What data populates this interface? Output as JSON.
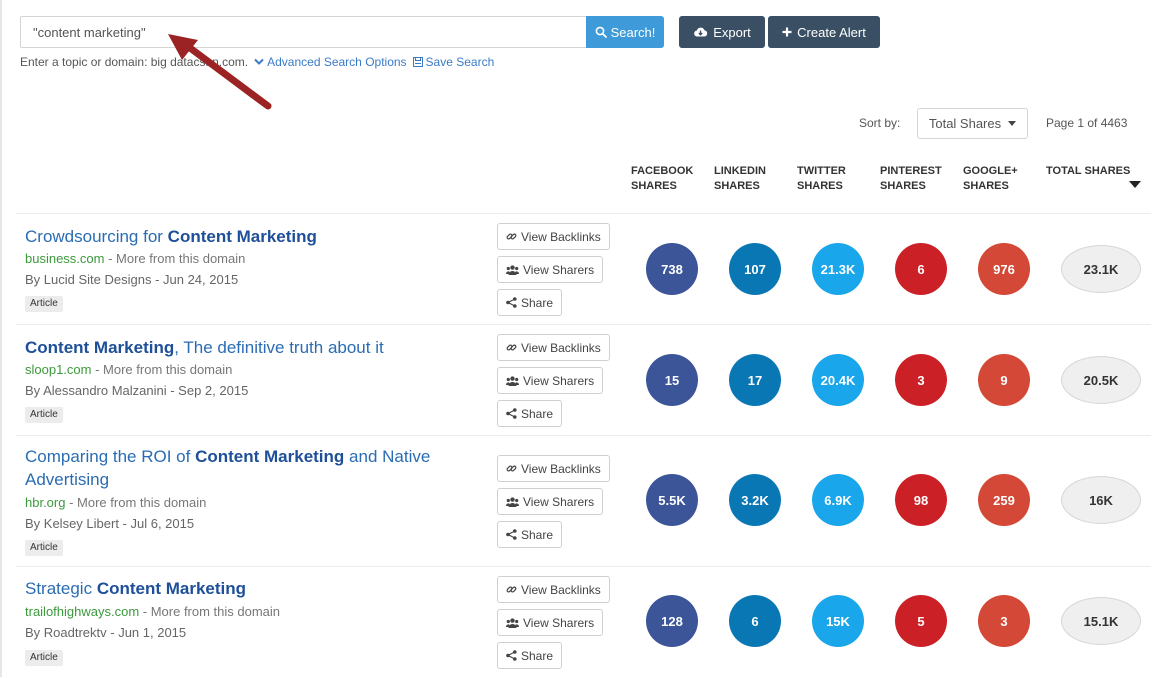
{
  "search": {
    "value": "\"content marketing\"",
    "button_label": "Search!",
    "helper_text": "Enter a topic or domain: big datacsnn.com.",
    "advanced_label": "Advanced Search Options",
    "save_label": "Save Search"
  },
  "toolbar": {
    "export_label": "Export",
    "create_alert_label": "Create Alert"
  },
  "sort": {
    "label": "Sort by:",
    "selected": "Total Shares",
    "page_info": "Page 1 of 4463"
  },
  "columns": [
    "FACEBOOK\nSHARES",
    "LINKEDIN\nSHARES",
    "TWITTER\nSHARES",
    "PINTEREST\nSHARES",
    "GOOGLE+\nSHARES",
    "TOTAL SHARES"
  ],
  "actions": {
    "backlinks": "View Backlinks",
    "sharers": "View Sharers",
    "share": "Share"
  },
  "colors": {
    "facebook": "#3b5598",
    "linkedin": "#0a77b5",
    "twitter": "#1aa6ea",
    "pinterest": "#cc2027",
    "googleplus": "#d34836",
    "search_button": "#3e9ad8",
    "dark_button": "#3a4f64"
  },
  "results": [
    {
      "title_pre": "Crowdsourcing for ",
      "title_bold": "Content Marketing",
      "title_post": "",
      "domain": "business.com",
      "more": " - More from this domain",
      "author": "By Lucid Site Designs - Jun 24, 2015",
      "type": "Article",
      "facebook": "738",
      "linkedin": "107",
      "twitter": "21.3K",
      "pinterest": "6",
      "googleplus": "976",
      "total": "23.1K"
    },
    {
      "title_pre": "",
      "title_bold": "Content Marketing",
      "title_post": ", The definitive truth about it",
      "domain": "sloop1.com",
      "more": " - More from this domain",
      "author": "By Alessandro Malzanini - Sep 2, 2015",
      "type": "Article",
      "facebook": "15",
      "linkedin": "17",
      "twitter": "20.4K",
      "pinterest": "3",
      "googleplus": "9",
      "total": "20.5K"
    },
    {
      "title_pre": "Comparing the ROI of ",
      "title_bold": "Content Marketing",
      "title_post": " and Native Advertising",
      "domain": "hbr.org",
      "more": " - More from this domain",
      "author": "By Kelsey Libert - Jul 6, 2015",
      "type": "Article",
      "facebook": "5.5K",
      "linkedin": "3.2K",
      "twitter": "6.9K",
      "pinterest": "98",
      "googleplus": "259",
      "total": "16K"
    },
    {
      "title_pre": "Strategic ",
      "title_bold": "Content Marketing",
      "title_post": "",
      "domain": "trailofhighways.com",
      "more": " - More from this domain",
      "author": "By Roadtrektv - Jun 1, 2015",
      "type": "Article",
      "facebook": "128",
      "linkedin": "6",
      "twitter": "15K",
      "pinterest": "5",
      "googleplus": "3",
      "total": "15.1K"
    }
  ]
}
